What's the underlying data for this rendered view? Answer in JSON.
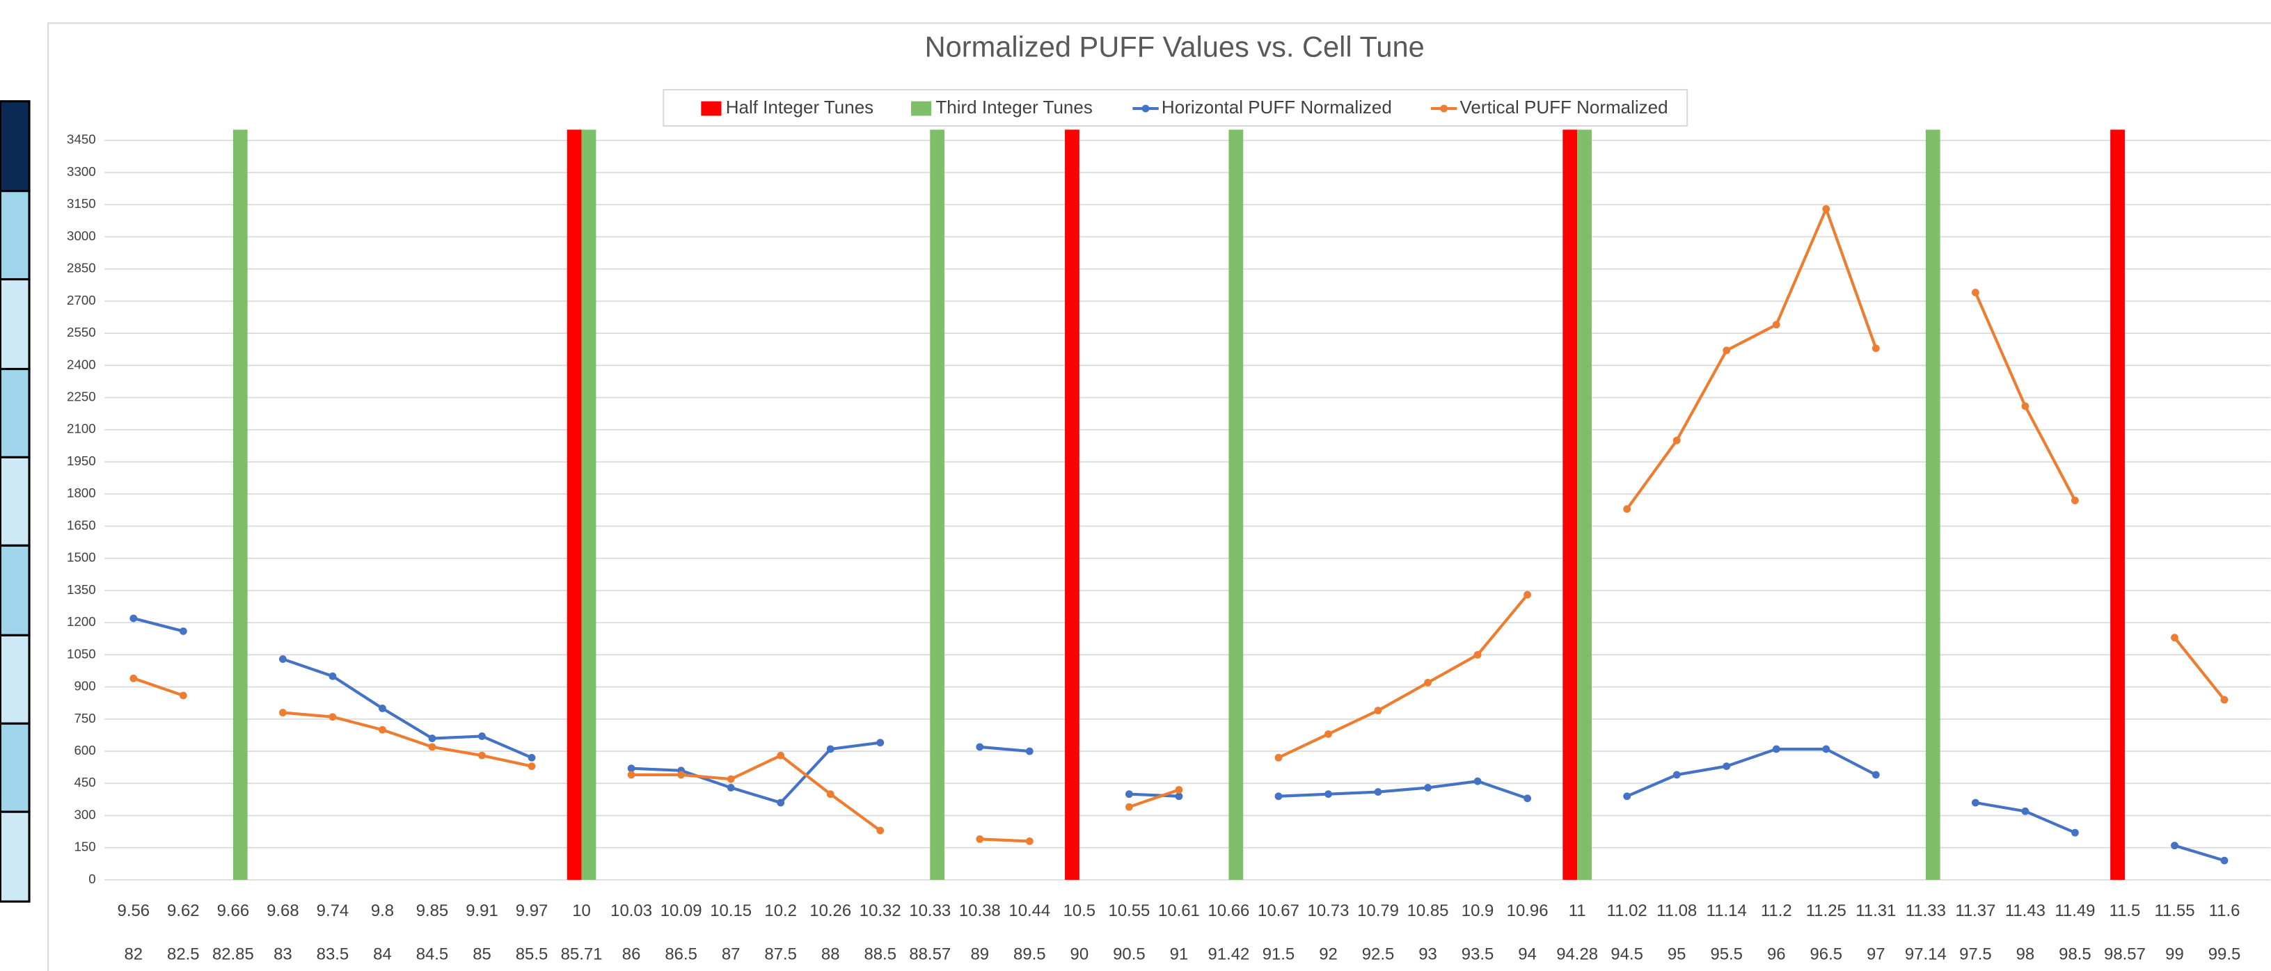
{
  "chart_data": {
    "type": "combo",
    "title": "Normalized PUFF Values vs. Cell Tune",
    "categories": [
      "9.56",
      "9.62",
      "9.66",
      "9.68",
      "9.74",
      "9.8",
      "9.85",
      "9.91",
      "9.97",
      "10",
      "10.03",
      "10.09",
      "10.15",
      "10.2",
      "10.26",
      "10.32",
      "10.33",
      "10.38",
      "10.44",
      "10.5",
      "10.55",
      "10.61",
      "10.66",
      "10.67",
      "10.73",
      "10.79",
      "10.85",
      "10.9",
      "10.96",
      "11",
      "11.02",
      "11.08",
      "11.14",
      "11.2",
      "11.25",
      "11.31",
      "11.33",
      "11.37",
      "11.43",
      "11.49",
      "11.5",
      "11.55",
      "11.6"
    ],
    "secondary_categories": [
      "82",
      "82.5",
      "82.85",
      "83",
      "83.5",
      "84",
      "84.5",
      "85",
      "85.5",
      "85.71",
      "86",
      "86.5",
      "87",
      "87.5",
      "88",
      "88.5",
      "88.57",
      "89",
      "89.5",
      "90",
      "90.5",
      "91",
      "91.42",
      "91.5",
      "92",
      "92.5",
      "93",
      "93.5",
      "94",
      "94.28",
      "94.5",
      "95",
      "95.5",
      "96",
      "96.5",
      "97",
      "97.14",
      "97.5",
      "98",
      "98.5",
      "98.57",
      "99",
      "99.5"
    ],
    "series": [
      {
        "name": "Half Integer Tunes",
        "type": "bar",
        "color": "#ff0000",
        "values": [
          null,
          null,
          null,
          null,
          null,
          null,
          null,
          null,
          null,
          3500,
          null,
          null,
          null,
          null,
          null,
          null,
          null,
          null,
          null,
          3500,
          null,
          null,
          null,
          null,
          null,
          null,
          null,
          null,
          null,
          3500,
          null,
          null,
          null,
          null,
          null,
          null,
          null,
          null,
          null,
          null,
          3500,
          null,
          null
        ]
      },
      {
        "name": "Third Integer Tunes",
        "type": "bar",
        "color": "#7fbf6a",
        "values": [
          null,
          null,
          3500,
          null,
          null,
          null,
          null,
          null,
          null,
          3500,
          null,
          null,
          null,
          null,
          null,
          null,
          3500,
          null,
          null,
          null,
          null,
          null,
          3500,
          null,
          null,
          null,
          null,
          null,
          null,
          3500,
          null,
          null,
          null,
          null,
          null,
          null,
          3500,
          null,
          null,
          null,
          null,
          null,
          null
        ]
      },
      {
        "name": "Horizontal PUFF Normalized",
        "type": "line",
        "color": "#4472c4",
        "values": [
          1220,
          1160,
          null,
          1030,
          950,
          800,
          660,
          670,
          570,
          null,
          520,
          510,
          430,
          360,
          610,
          640,
          null,
          620,
          600,
          null,
          400,
          390,
          null,
          390,
          400,
          410,
          430,
          460,
          380,
          null,
          390,
          490,
          530,
          610,
          610,
          490,
          null,
          360,
          320,
          220,
          null,
          160,
          90
        ]
      },
      {
        "name": "Vertical PUFF Normalized",
        "type": "line",
        "color": "#ed7d31",
        "values": [
          940,
          860,
          null,
          780,
          760,
          700,
          620,
          580,
          530,
          null,
          490,
          490,
          470,
          580,
          400,
          230,
          null,
          190,
          180,
          null,
          340,
          420,
          null,
          570,
          680,
          790,
          920,
          1050,
          1330,
          null,
          1730,
          2050,
          2470,
          2590,
          3130,
          2480,
          null,
          2740,
          2210,
          1770,
          null,
          1130,
          840
        ]
      }
    ],
    "ylim": [
      0,
      3500
    ],
    "yticks": [
      0,
      150,
      300,
      450,
      600,
      750,
      900,
      1050,
      1200,
      1350,
      1500,
      1650,
      1800,
      1950,
      2100,
      2250,
      2400,
      2550,
      2700,
      2850,
      3000,
      3150,
      3300,
      3450
    ],
    "grid": true,
    "legend": "top"
  }
}
